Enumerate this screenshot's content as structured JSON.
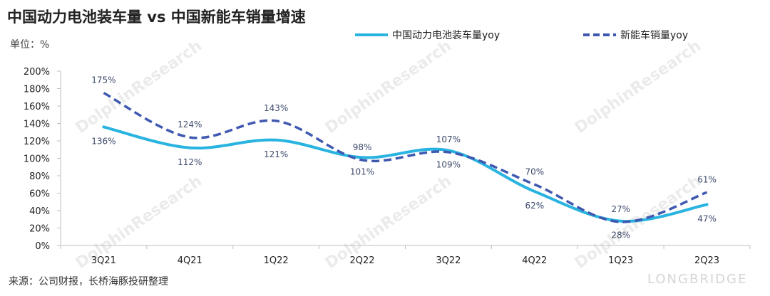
{
  "header": {
    "title": "中国动力电池装车量 vs 中国新能车销量增速",
    "unit": "单位：%"
  },
  "footer": {
    "source": "来源：公司财报，长桥海豚投研整理",
    "brand": "LONGBRIDGE",
    "watermark": "DolphinResearch",
    "watermark_small": "LONGBRIDGE"
  },
  "colors": {
    "battery": "#29b3e0",
    "nev": "#3f58b0",
    "axis": "#bfbfbf",
    "label": "#3c4a6b"
  },
  "chart_data": {
    "type": "line",
    "title": "中国动力电池装车量 vs 中国新能车销量增速",
    "ylabel": "单位：%",
    "xlabel": "",
    "categories": [
      "3Q21",
      "4Q21",
      "1Q22",
      "2Q22",
      "3Q22",
      "4Q22",
      "1Q23",
      "2Q23"
    ],
    "ylim": [
      0,
      200
    ],
    "yticks": [
      0,
      20,
      40,
      60,
      80,
      100,
      120,
      140,
      160,
      180,
      200
    ],
    "ytick_suffix": "%",
    "grid": false,
    "legend": "top-right",
    "series": [
      {
        "name": "中国动力电池装车量yoy",
        "style": "solid",
        "values": [
          136,
          112,
          121,
          101,
          109,
          62,
          28,
          47
        ],
        "labels": [
          "136%",
          "112%",
          "121%",
          "101%",
          "109%",
          "62%",
          "28%",
          "47%"
        ]
      },
      {
        "name": "新能车销量yoy",
        "style": "dashed",
        "values": [
          175,
          124,
          143,
          98,
          107,
          70,
          27,
          61
        ],
        "labels": [
          "175%",
          "124%",
          "143%",
          "98%",
          "107%",
          "70%",
          "27%",
          "61%"
        ]
      }
    ]
  }
}
